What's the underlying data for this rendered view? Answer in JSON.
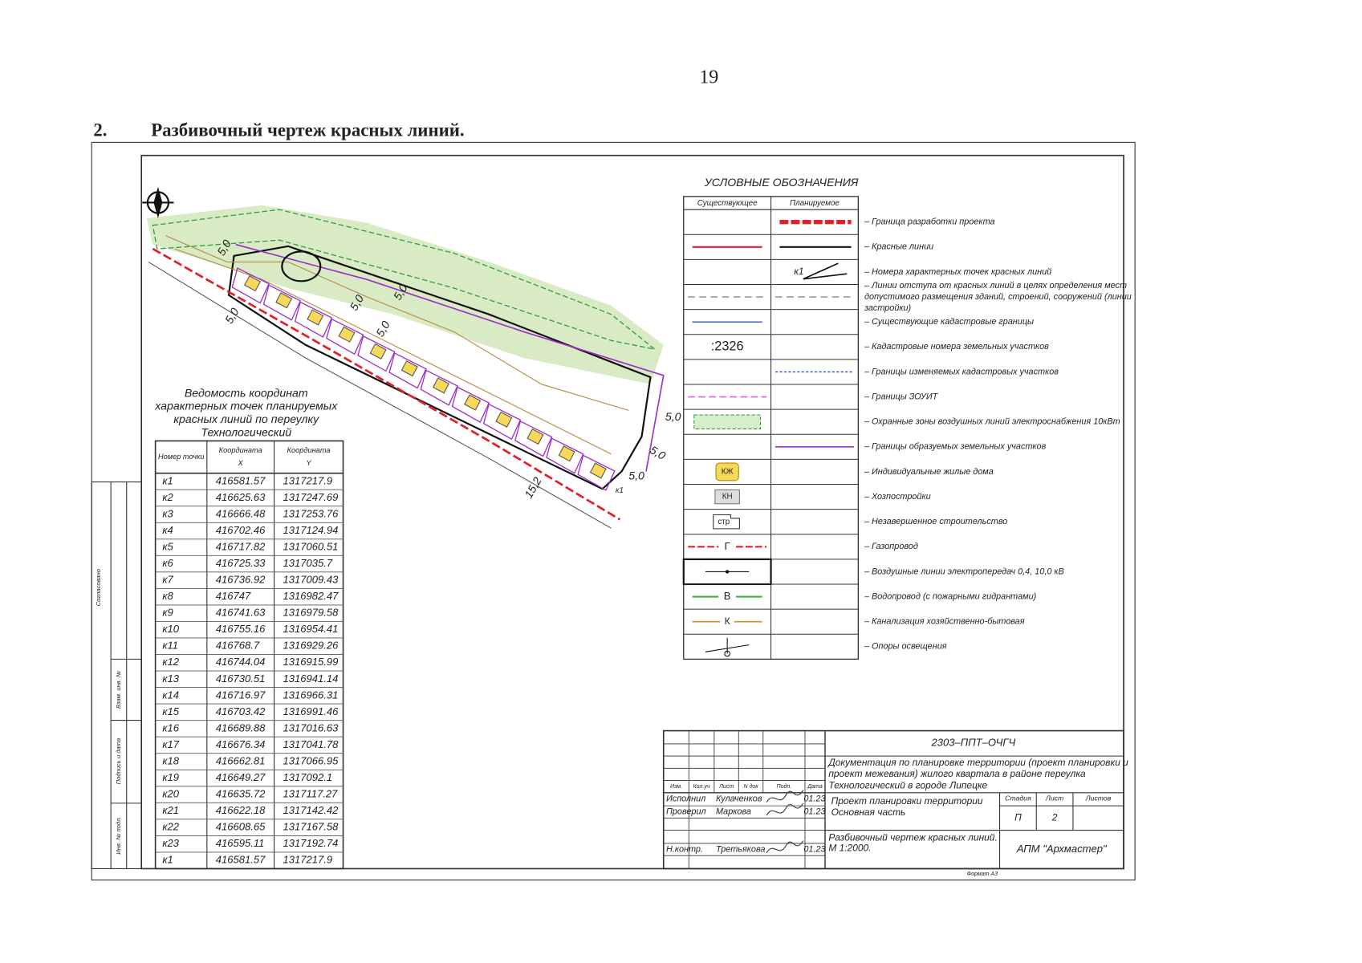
{
  "page_number": "19",
  "heading": {
    "number": "2.",
    "text": "Разбивочный чертеж красных линий."
  },
  "drawing": {
    "map_labels": [
      "5,0",
      "5,0",
      "5,0",
      "5,0",
      "5,0",
      "5,0",
      "5,0",
      "5,0",
      "15,2",
      "к1"
    ],
    "coordinates_table": {
      "title": [
        "Ведомость координат",
        "характерных точек планируемых",
        "красных линий по переулку",
        "Технологический"
      ],
      "headers": [
        [
          "Номер точки"
        ],
        [
          "Координата",
          "X"
        ],
        [
          "Координата",
          "Y"
        ]
      ],
      "rows": [
        [
          "к1",
          "416581.57",
          "1317217.9"
        ],
        [
          "к2",
          "416625.63",
          "1317247.69"
        ],
        [
          "к3",
          "416666.48",
          "1317253.76"
        ],
        [
          "к4",
          "416702.46",
          "1317124.94"
        ],
        [
          "к5",
          "416717.82",
          "1317060.51"
        ],
        [
          "к6",
          "416725.33",
          "1317035.7"
        ],
        [
          "к7",
          "416736.92",
          "1317009.43"
        ],
        [
          "к8",
          "416747",
          "1316982.47"
        ],
        [
          "к9",
          "416741.63",
          "1316979.58"
        ],
        [
          "к10",
          "416755.16",
          "1316954.41"
        ],
        [
          "к11",
          "416768.7",
          "1316929.26"
        ],
        [
          "к12",
          "416744.04",
          "1316915.99"
        ],
        [
          "к13",
          "416730.51",
          "1316941.14"
        ],
        [
          "к14",
          "416716.97",
          "1316966.31"
        ],
        [
          "к15",
          "416703.42",
          "1316991.46"
        ],
        [
          "к16",
          "416689.88",
          "1317016.63"
        ],
        [
          "к17",
          "416676.34",
          "1317041.78"
        ],
        [
          "к18",
          "416662.81",
          "1317066.95"
        ],
        [
          "к19",
          "416649.27",
          "1317092.1"
        ],
        [
          "к20",
          "416635.72",
          "1317117.27"
        ],
        [
          "к21",
          "416622.18",
          "1317142.42"
        ],
        [
          "к22",
          "416608.65",
          "1317167.58"
        ],
        [
          "к23",
          "416595.11",
          "1317192.74"
        ],
        [
          "к1",
          "416581.57",
          "1317217.9"
        ]
      ]
    },
    "legend": {
      "title": "УСЛОВНЫЕ ОБОЗНАЧЕНИЯ",
      "columns": [
        "Существующее",
        "Планируемое"
      ],
      "items": [
        {
          "label": [
            "– Граница разработки проекта"
          ]
        },
        {
          "label": [
            "– Красные линии"
          ]
        },
        {
          "label": [
            "– Номера характерных точек красных линий"
          ],
          "symbol": "к1"
        },
        {
          "label": [
            "– Линии отступа от красных линий в целях определения мест",
            "допустимого размещения зданий, строений, сооружений (линии",
            "застройки)"
          ]
        },
        {
          "label": [
            "– Существующие кадастровые границы"
          ]
        },
        {
          "label": [
            "– Кадастровые номера земельных участков"
          ],
          "symbol": ":2326"
        },
        {
          "label": [
            "– Границы изменяемых кадастровых участков"
          ]
        },
        {
          "label": [
            "– Границы ЗОУИТ"
          ]
        },
        {
          "label": [
            "– Охранные зоны воздушных линий электроснабжения 10кВт"
          ]
        },
        {
          "label": [
            "– Границы образуемых земельных участков"
          ]
        },
        {
          "label": [
            "– Индивидуальные жилые дома"
          ],
          "symbol": "КЖ"
        },
        {
          "label": [
            "– Хозпостройки"
          ],
          "symbol": "КН"
        },
        {
          "label": [
            "– Незавершенное строительство"
          ],
          "symbol": "стр"
        },
        {
          "label": [
            "– Газопровод"
          ],
          "symbol": "Г"
        },
        {
          "label": [
            "– Воздушные линии электропередач 0,4, 10,0 кВ"
          ]
        },
        {
          "label": [
            "– Водопровод (с пожарными гидрантами)"
          ],
          "symbol": "В"
        },
        {
          "label": [
            "– Канализация хозяйственно-бытовая"
          ],
          "symbol": "К"
        },
        {
          "label": [
            "– Опоры освещения"
          ]
        }
      ]
    },
    "side_stamp": [
      "Согласовано",
      "Взам. инв. №",
      "Подпись и дата",
      "Инв. № подл."
    ],
    "title_block": {
      "code": "2303–ППТ–ОЧГЧ",
      "description": [
        "Документация по планировке территории (проект планировки и",
        "проект межевания) жилого квартала в районе переулка",
        "Технологический в городе Липецке"
      ],
      "columns": [
        "Изм.",
        "Кол.уч",
        "Лист",
        "N док",
        "Подп.",
        "Дата"
      ],
      "signers": [
        {
          "role": "Исполнил",
          "name": "Кулаченков",
          "date": "01.23"
        },
        {
          "role": "Проверил",
          "name": "Маркова",
          "date": "01.23"
        },
        {
          "role": "Н.контр.",
          "name": "Третьякова",
          "date": "01.23"
        }
      ],
      "project": [
        "Проект планировки территории",
        "Основная часть"
      ],
      "stage_headers": [
        "Стадия",
        "Лист",
        "Листов"
      ],
      "stage_values": [
        "П",
        "2"
      ],
      "sheet_title": [
        "Разбивочный чертеж красных линий.",
        "М 1:2000."
      ],
      "company": "АПМ \"Архмастер\"",
      "format": "Формат А3"
    }
  }
}
